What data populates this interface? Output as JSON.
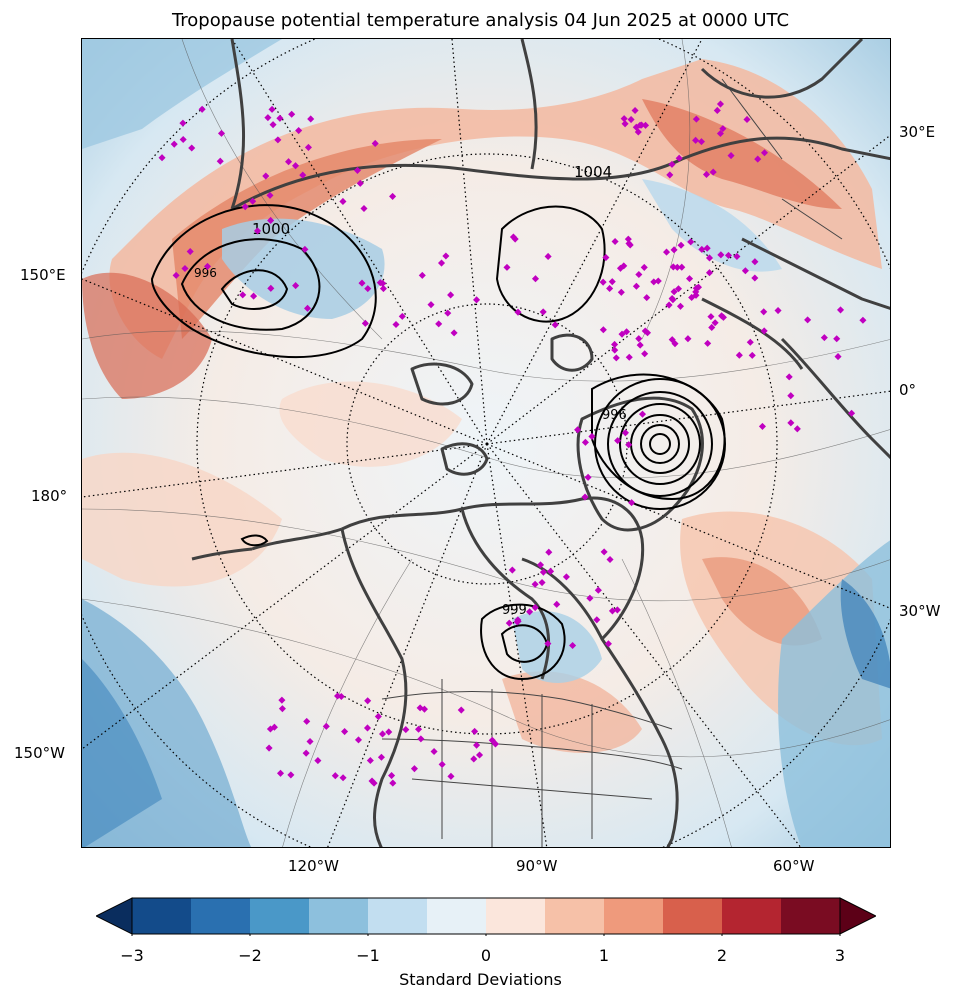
{
  "title": "Tropopause potential temperature analysis 04 Jun 2025 at 0000 UTC",
  "map": {
    "projection": "north-polar-stereographic",
    "lon_labels": {
      "left_150E": "150°E",
      "left_180": "180°",
      "left_150W": "150°W",
      "right_30E": "30°E",
      "right_0": "0°",
      "right_30W": "30°W",
      "bottom_120W": "120°W",
      "bottom_90W": "90°W",
      "bottom_60W": "60°W"
    },
    "contour_labels": [
      "1000",
      "1004",
      "996",
      "999",
      "996"
    ],
    "station_marker_color": "#c000c0",
    "coastline_color": "#404040"
  },
  "colorbar": {
    "label": "Standard Deviations",
    "ticks": [
      "−3",
      "−2",
      "−1",
      "0",
      "1",
      "2",
      "3"
    ],
    "colors": [
      "#0a2d5e",
      "#134b8a",
      "#2a70b0",
      "#4a98c8",
      "#8dc0dd",
      "#c2def0",
      "#e7f1f7",
      "#fbe6dc",
      "#f6c1a8",
      "#ef9a7c",
      "#d8604c",
      "#b42530",
      "#7a0c22",
      "#5c0017"
    ],
    "extend": "both"
  }
}
